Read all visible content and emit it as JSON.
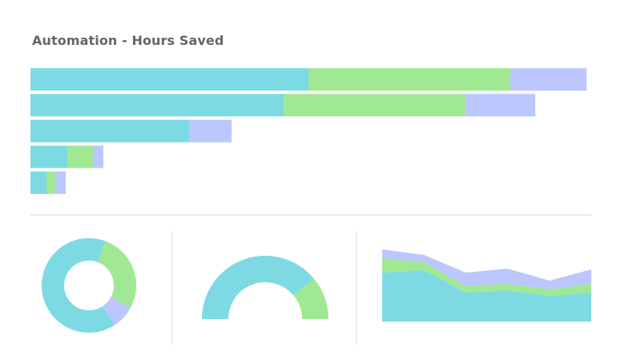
{
  "title": "Automation - Hours Saved",
  "colors": {
    "teal": "#7ddae2",
    "green": "#a1e893",
    "lavender": "#bcc6ff",
    "divider": "#d9d9d9"
  },
  "chart_data": [
    {
      "type": "bar",
      "orientation": "horizontal",
      "stacked": true,
      "categories": [
        "",
        "",
        "",
        "",
        ""
      ],
      "series": [
        {
          "values": [
            347,
            316,
            198,
            46,
            20
          ],
          "color": "teal"
        },
        {
          "values": [
            252,
            227,
            0,
            32,
            11
          ],
          "color": "green"
        },
        {
          "values": [
            95,
            87,
            53,
            13,
            13
          ],
          "color": "lavender"
        }
      ],
      "grid": false
    },
    {
      "type": "pie",
      "variant": "donut",
      "values": [
        65,
        27,
        8
      ],
      "colors": [
        "teal",
        "green",
        "lavender"
      ]
    },
    {
      "type": "pie",
      "variant": "semi-donut",
      "values": [
        78,
        22
      ],
      "colors": [
        "teal",
        "green"
      ]
    },
    {
      "type": "area",
      "stacked": true,
      "x": [
        1,
        2,
        3,
        4,
        5,
        6
      ],
      "series": [
        {
          "values": [
            61,
            64,
            36,
            39,
            32,
            36
          ],
          "color": "teal"
        },
        {
          "values": [
            18,
            10,
            8,
            8,
            8,
            11
          ],
          "color": "green"
        },
        {
          "values": [
            11,
            9,
            17,
            19,
            11,
            18
          ],
          "color": "lavender"
        }
      ],
      "grid": false
    }
  ]
}
